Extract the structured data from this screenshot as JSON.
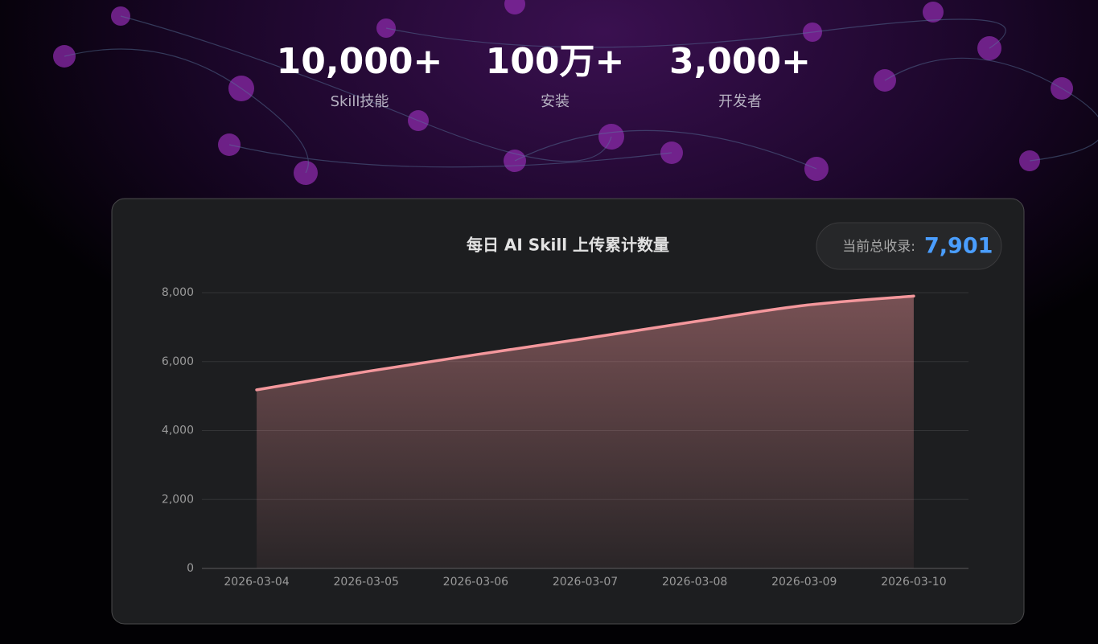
{
  "stats": [
    {
      "value": "10,000+",
      "label": "Skill技能"
    },
    {
      "value": "100万+",
      "label": "安装"
    },
    {
      "value": "3,000+",
      "label": "开发者"
    }
  ],
  "chart_data": {
    "type": "area",
    "title": "每日 AI Skill 上传累计数量",
    "badge_label": "当前总收录:",
    "badge_value": "7,901",
    "categories": [
      "2026-03-04",
      "2026-03-05",
      "2026-03-06",
      "2026-03-07",
      "2026-03-08",
      "2026-03-09",
      "2026-03-10"
    ],
    "values": [
      5180,
      5710,
      6200,
      6670,
      7160,
      7630,
      7901
    ],
    "color": "#f4979c",
    "ylim": [
      0,
      8000
    ],
    "yticks": [
      0,
      {
        "value": 2000,
        "label": "2,000"
      },
      {
        "value": 4000,
        "label": "4,000"
      },
      {
        "value": 6000,
        "label": "6,000"
      },
      {
        "value": 8000,
        "label": "8,000"
      }
    ],
    "grid": true
  }
}
